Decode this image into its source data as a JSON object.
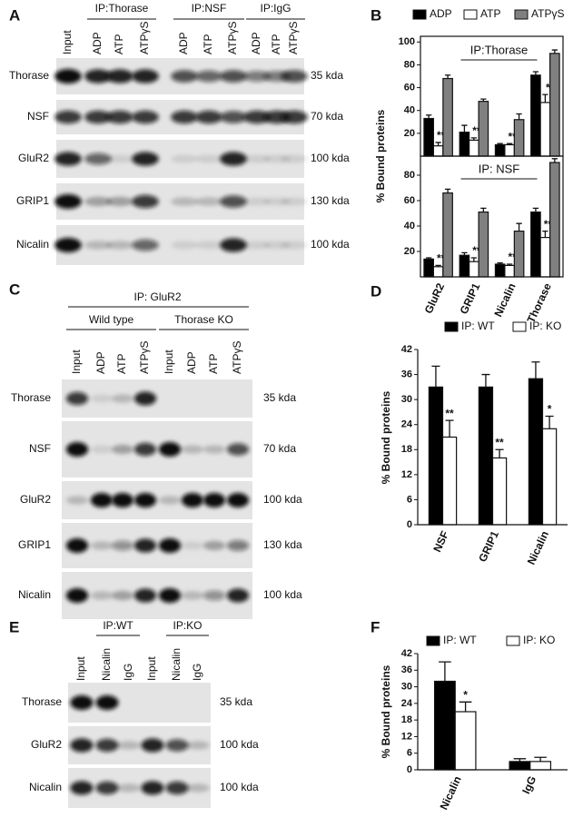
{
  "blots": [
    {
      "label": "A",
      "groups": [
        "IP:Thorase",
        "IP:NSF",
        "IP:IgG"
      ],
      "lanes": [
        "Input",
        "ADP",
        "ATP",
        "ATPγS",
        "ADP",
        "ATP",
        "ATPγS",
        "ADP",
        "ATP",
        "ATPγS"
      ],
      "rows": [
        {
          "name": "Thorase",
          "size": "35 kda"
        },
        {
          "name": "NSF",
          "size": "70 kda"
        },
        {
          "name": "GluR2",
          "size": "100 kda"
        },
        {
          "name": "GRIP1",
          "size": "130 kda"
        },
        {
          "name": "Nicalin",
          "size": "100 kda"
        }
      ]
    },
    {
      "label": "C",
      "title": "IP: GluR2",
      "groups": [
        "Wild type",
        "Thorase KO"
      ],
      "lanes": [
        "Input",
        "ADP",
        "ATP",
        "ATPγS",
        "Input",
        "ADP",
        "ATP",
        "ATPγS"
      ],
      "rows": [
        {
          "name": "Thorase",
          "size": "35 kda"
        },
        {
          "name": "NSF",
          "size": "70 kda"
        },
        {
          "name": "GluR2",
          "size": "100 kda"
        },
        {
          "name": "GRIP1",
          "size": "130 kda"
        },
        {
          "name": "Nicalin",
          "size": "100 kda"
        }
      ]
    },
    {
      "label": "E",
      "groups": [
        "IP:WT",
        "IP:KO"
      ],
      "lanes": [
        "Input",
        "Nicalin",
        "IgG",
        "Input",
        "Nicalin",
        "IgG"
      ],
      "rows": [
        {
          "name": "Thorase",
          "size": "35 kda"
        },
        {
          "name": "GluR2",
          "size": "100 kda"
        },
        {
          "name": "Nicalin",
          "size": "100 kda"
        }
      ]
    }
  ],
  "chart_data": [
    {
      "type": "bar",
      "panel": "B",
      "title": "IP:Thorase",
      "ylabel": "% Bound proteins",
      "ylim": [
        0,
        105
      ],
      "yticks": [
        20,
        40,
        60,
        80,
        100
      ],
      "series": [
        {
          "name": "ADP",
          "color": "#000000",
          "values": [
            33,
            21,
            10,
            71
          ],
          "errors": [
            3,
            6,
            1,
            3
          ],
          "significance": [
            null,
            null,
            null,
            null
          ]
        },
        {
          "name": "ATP",
          "color": "#ffffff",
          "values": [
            9,
            14,
            10,
            47
          ],
          "errors": [
            3,
            2,
            1,
            7
          ],
          "significance": [
            "**",
            "**",
            "**",
            "*"
          ]
        },
        {
          "name": "ATPγS",
          "color": "#808080",
          "values": [
            68,
            48,
            32,
            90
          ],
          "errors": [
            3,
            2,
            5,
            3
          ],
          "significance": [
            null,
            null,
            null,
            null
          ]
        }
      ]
    },
    {
      "type": "bar",
      "title": "IP: NSF",
      "categories": [
        "GluR2",
        "GRIP1",
        "Nicalin",
        "Thorase"
      ],
      "ylim": [
        0,
        95
      ],
      "yticks": [
        20,
        40,
        60,
        80
      ],
      "series": [
        {
          "color": "#000000",
          "values": [
            14,
            17,
            10,
            51
          ],
          "errors": [
            1,
            2,
            1,
            3
          ],
          "significance": [
            null,
            null,
            null,
            null
          ]
        },
        {
          "color": "#ffffff",
          "values": [
            8,
            12,
            9,
            31
          ],
          "errors": [
            1,
            3,
            1,
            5
          ],
          "significance": [
            "**",
            "**",
            "**",
            "**"
          ]
        },
        {
          "color": "#808080",
          "values": [
            66,
            51,
            36,
            90
          ],
          "errors": [
            3,
            3,
            6,
            3
          ],
          "significance": [
            null,
            null,
            null,
            null
          ]
        }
      ]
    },
    {
      "type": "bar",
      "panel": "D",
      "ylabel": "% Bound proteins",
      "categories": [
        "NSF",
        "GRIP1",
        "Nicalin"
      ],
      "ylim": [
        0,
        42
      ],
      "yticks": [
        0,
        6,
        12,
        18,
        24,
        30,
        36,
        42
      ],
      "series": [
        {
          "name": "IP: WT",
          "color": "#000000",
          "values": [
            33,
            33,
            35
          ],
          "errors": [
            5,
            3,
            4
          ],
          "significance": [
            null,
            null,
            null
          ]
        },
        {
          "name": "IP: KO",
          "color": "#ffffff",
          "values": [
            21,
            16,
            23
          ],
          "errors": [
            4,
            2,
            3
          ],
          "significance": [
            "**",
            "**",
            "*"
          ]
        }
      ]
    },
    {
      "type": "bar",
      "panel": "F",
      "ylabel": "% Bound proteins",
      "categories": [
        "Nicalin",
        "IgG"
      ],
      "ylim": [
        0,
        42
      ],
      "yticks": [
        0,
        6,
        12,
        18,
        24,
        30,
        36,
        42
      ],
      "series": [
        {
          "name": "IP: WT",
          "color": "#000000",
          "values": [
            32,
            3
          ],
          "errors": [
            7,
            1
          ],
          "significance": [
            null,
            null
          ]
        },
        {
          "name": "IP: KO",
          "color": "#ffffff",
          "values": [
            21,
            3
          ],
          "errors": [
            3.5,
            1.5
          ],
          "significance": [
            "*",
            null
          ]
        }
      ]
    }
  ]
}
